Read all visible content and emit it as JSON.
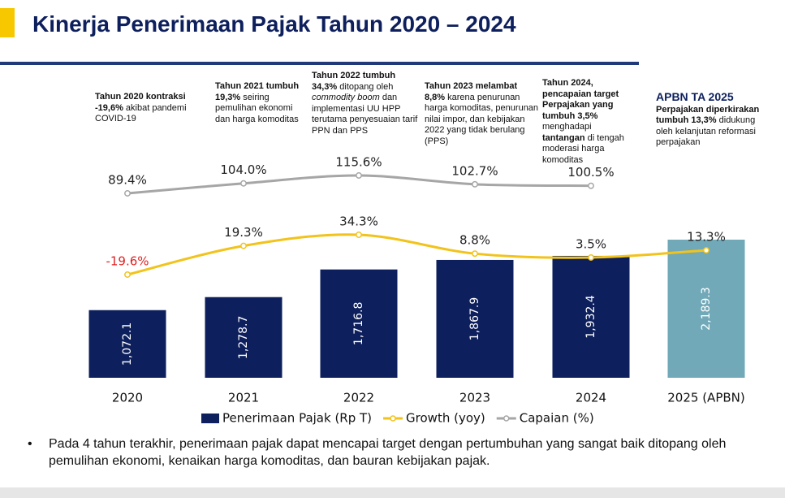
{
  "chart_data": {
    "type": "bar",
    "title": "Kinerja Penerimaan Pajak Tahun 2020 – 2024",
    "categories": [
      "2020",
      "2021",
      "2022",
      "2023",
      "2024",
      "2025 (APBN)"
    ],
    "series": [
      {
        "name": "Penerimaan Pajak (Rp T)",
        "type": "bar",
        "color": "#0d1f5c",
        "point_colors": [
          "#0d1f5c",
          "#0d1f5c",
          "#0d1f5c",
          "#0d1f5c",
          "#0d1f5c",
          "#71a9b9"
        ],
        "values": [
          1072.1,
          1278.7,
          1716.8,
          1867.9,
          1932.4,
          2189.3
        ],
        "value_labels": [
          "1,072.1",
          "1,278.7",
          "1,716.8",
          "1,867.9",
          "1,932.4",
          "2,189.3"
        ]
      },
      {
        "name": "Growth (yoy)",
        "type": "line",
        "color": "#f2c31b",
        "negative_label_color": "#e02020",
        "values": [
          -19.6,
          19.3,
          34.3,
          8.8,
          3.5,
          13.3
        ],
        "value_labels": [
          "-19.6%",
          "19.3%",
          "34.3%",
          "8.8%",
          "3.5%",
          "13.3%"
        ]
      },
      {
        "name": "Capaian (%)",
        "type": "line",
        "color": "#a6a6a6",
        "values": [
          89.4,
          104.0,
          115.6,
          102.7,
          100.5,
          null
        ],
        "value_labels": [
          "89.4%",
          "104.0%",
          "115.6%",
          "102.7%",
          "100.5%",
          null
        ]
      }
    ],
    "annotations": [
      {
        "runs": [
          {
            "text": "Tahun 2020 kontraksi -19,6%",
            "bold": true
          },
          {
            "text": " akibat pandemi COVID-19"
          }
        ]
      },
      {
        "runs": [
          {
            "text": "Tahun 2021 tumbuh 19,3%",
            "bold": true
          },
          {
            "text": " seiring pemulihan ekonomi dan harga komoditas"
          }
        ]
      },
      {
        "runs": [
          {
            "text": "Tahun 2022 tumbuh 34,3%",
            "bold": true
          },
          {
            "text": " ditopang oleh "
          },
          {
            "text": "commodity boom",
            "italic": true
          },
          {
            "text": " dan implementasi UU HPP terutama penyesuaian tarif PPN dan PPS"
          }
        ]
      },
      {
        "runs": [
          {
            "text": "Tahun 2023 melambat 8,8%",
            "bold": true
          },
          {
            "text": " karena penurunan harga komoditas, penurunan nilai impor, dan kebijakan 2022 yang tidak berulang (PPS)"
          }
        ]
      },
      {
        "runs": [
          {
            "text": "Tahun 2024, pencapaian target Perpajakan yang tumbuh 3,5%",
            "bold": true
          },
          {
            "text": " menghadapi "
          },
          {
            "text": "tantangan",
            "bold": true
          },
          {
            "text": " di tengah moderasi harga komoditas"
          }
        ]
      },
      {
        "heading": "APBN TA 2025",
        "runs": [
          {
            "text": "Perpajakan diperkirakan tumbuh 13,3%",
            "bold": true
          },
          {
            "text": " didukung oleh kelanjutan reformasi perpajakan"
          }
        ]
      }
    ],
    "note": {
      "bullet": "•",
      "text": "Pada 4 tahun terakhir, penerimaan pajak dapat mencapai target dengan pertumbuhan yang sangat baik ditopang oleh pemulihan ekonomi, kenaikan harga komoditas, dan bauran kebijakan pajak."
    }
  }
}
